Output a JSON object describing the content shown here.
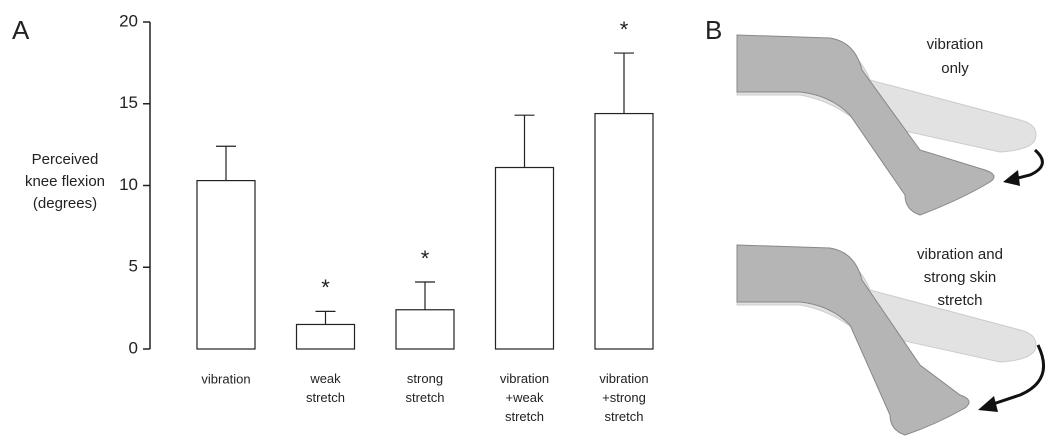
{
  "chart_data": {
    "type": "bar",
    "panel_label": "A",
    "y_label": "Perceived\nknee flexion\n(degrees)",
    "categories": [
      "vibration",
      "weak\nstretch",
      "strong\nstretch",
      "vibration\n+weak\nstretch",
      "vibration\n+strong\nstretch"
    ],
    "values": [
      10.3,
      1.5,
      2.4,
      11.1,
      14.4
    ],
    "errors": [
      2.1,
      0.8,
      1.7,
      3.2,
      3.7
    ],
    "significance": [
      null,
      "*",
      "*",
      null,
      "*"
    ],
    "color": "#ffffff",
    "ylim": [
      0,
      20
    ],
    "yticks": [
      0,
      5,
      10,
      15,
      20
    ]
  },
  "panel_b": {
    "panel_label": "B",
    "captions": [
      "vibration\nonly",
      "vibration and\nstrong skin\nstretch"
    ]
  }
}
